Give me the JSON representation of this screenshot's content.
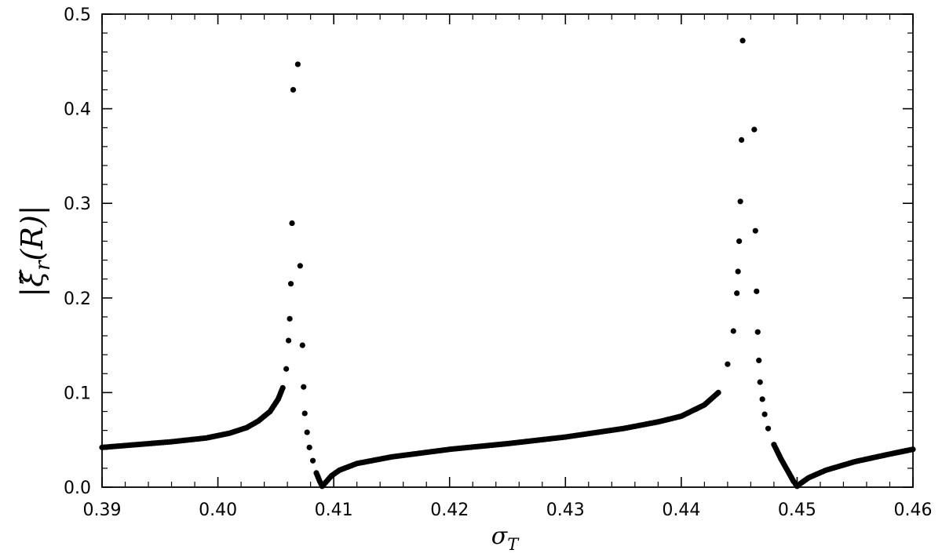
{
  "chart_data": {
    "type": "scatter",
    "title": "",
    "xlabel": "σ_T",
    "ylabel": "|ξ̃_r(R)|",
    "xlim": [
      0.39,
      0.46
    ],
    "ylim": [
      0.0,
      0.5
    ],
    "xticks": [
      "0.39",
      "0.40",
      "0.41",
      "0.42",
      "0.43",
      "0.44",
      "0.45",
      "0.46"
    ],
    "yticks": [
      "0.0",
      "0.1",
      "0.2",
      "0.3",
      "0.4",
      "0.5"
    ],
    "grid": false,
    "marker_color": "#000000",
    "series": [
      {
        "points": [
          [
            0.39,
            0.042
          ],
          [
            0.393,
            0.045
          ],
          [
            0.396,
            0.048
          ],
          [
            0.399,
            0.052
          ],
          [
            0.401,
            0.057
          ],
          [
            0.4025,
            0.063
          ],
          [
            0.4035,
            0.07
          ],
          [
            0.4045,
            0.08
          ],
          [
            0.4052,
            0.093
          ],
          [
            0.4056,
            0.105
          ],
          [
            0.4059,
            0.125
          ],
          [
            0.4061,
            0.155
          ],
          [
            0.4062,
            0.178
          ],
          [
            0.4063,
            0.215
          ],
          [
            0.4064,
            0.279
          ],
          [
            0.4065,
            0.42
          ],
          [
            0.4069,
            0.447
          ],
          [
            0.4071,
            0.234
          ],
          [
            0.4073,
            0.15
          ],
          [
            0.4074,
            0.106
          ],
          [
            0.4075,
            0.078
          ],
          [
            0.4077,
            0.058
          ],
          [
            0.4079,
            0.042
          ],
          [
            0.4082,
            0.028
          ],
          [
            0.4085,
            0.015
          ],
          [
            0.4088,
            0.006
          ],
          [
            0.409,
            0.001
          ],
          [
            0.4093,
            0.005
          ],
          [
            0.4098,
            0.012
          ],
          [
            0.4105,
            0.018
          ],
          [
            0.412,
            0.025
          ],
          [
            0.415,
            0.032
          ],
          [
            0.42,
            0.04
          ],
          [
            0.425,
            0.046
          ],
          [
            0.43,
            0.053
          ],
          [
            0.435,
            0.062
          ],
          [
            0.438,
            0.069
          ],
          [
            0.44,
            0.075
          ],
          [
            0.442,
            0.087
          ],
          [
            0.4432,
            0.1
          ],
          [
            0.444,
            0.13
          ],
          [
            0.4445,
            0.165
          ],
          [
            0.4448,
            0.205
          ],
          [
            0.4449,
            0.228
          ],
          [
            0.445,
            0.26
          ],
          [
            0.4451,
            0.302
          ],
          [
            0.4452,
            0.367
          ],
          [
            0.4453,
            0.472
          ],
          [
            0.4463,
            0.378
          ],
          [
            0.4464,
            0.271
          ],
          [
            0.4465,
            0.207
          ],
          [
            0.4466,
            0.164
          ],
          [
            0.4467,
            0.134
          ],
          [
            0.4468,
            0.111
          ],
          [
            0.447,
            0.093
          ],
          [
            0.4472,
            0.077
          ],
          [
            0.4475,
            0.062
          ],
          [
            0.448,
            0.045
          ],
          [
            0.4486,
            0.03
          ],
          [
            0.4492,
            0.017
          ],
          [
            0.4497,
            0.006
          ],
          [
            0.45,
            0.001
          ],
          [
            0.4503,
            0.004
          ],
          [
            0.451,
            0.01
          ],
          [
            0.4525,
            0.018
          ],
          [
            0.455,
            0.027
          ],
          [
            0.458,
            0.035
          ],
          [
            0.46,
            0.04
          ]
        ]
      }
    ]
  }
}
